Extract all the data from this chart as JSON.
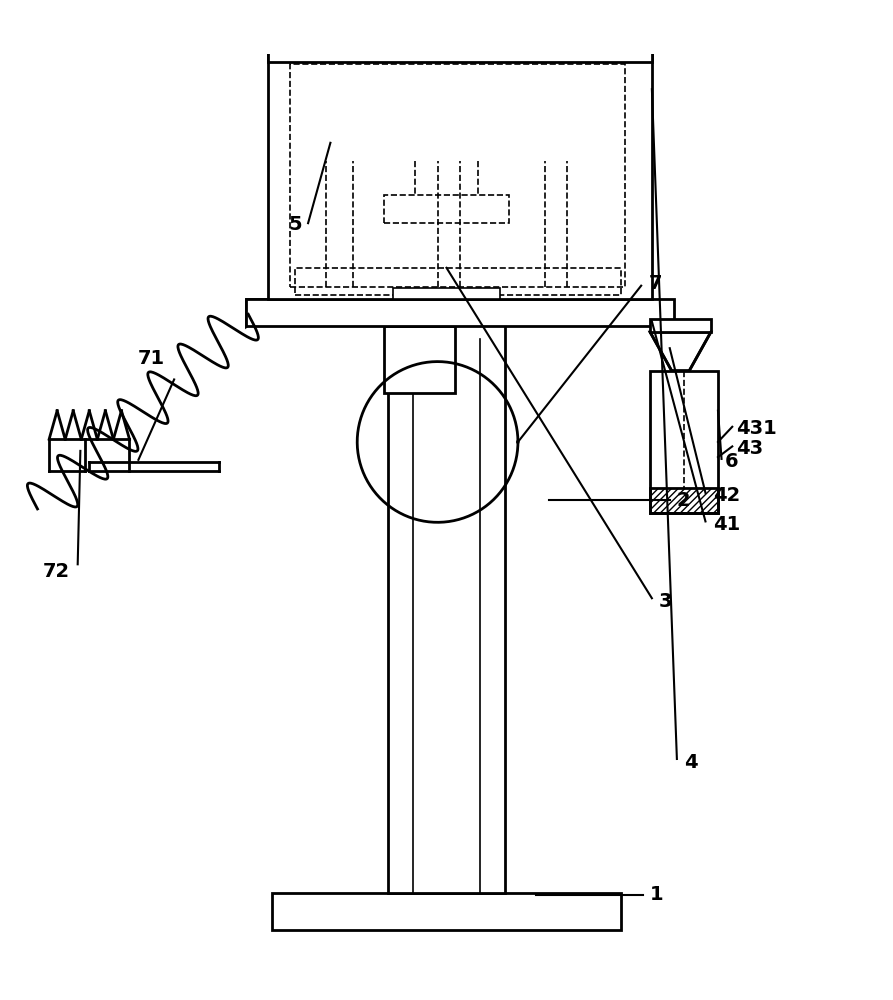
{
  "bg_color": "#ffffff",
  "line_color": "#000000",
  "lw": 2.0,
  "lw_thin": 1.2,
  "lw_label": 1.5,
  "figsize": [
    8.93,
    10.0
  ],
  "dpi": 100
}
